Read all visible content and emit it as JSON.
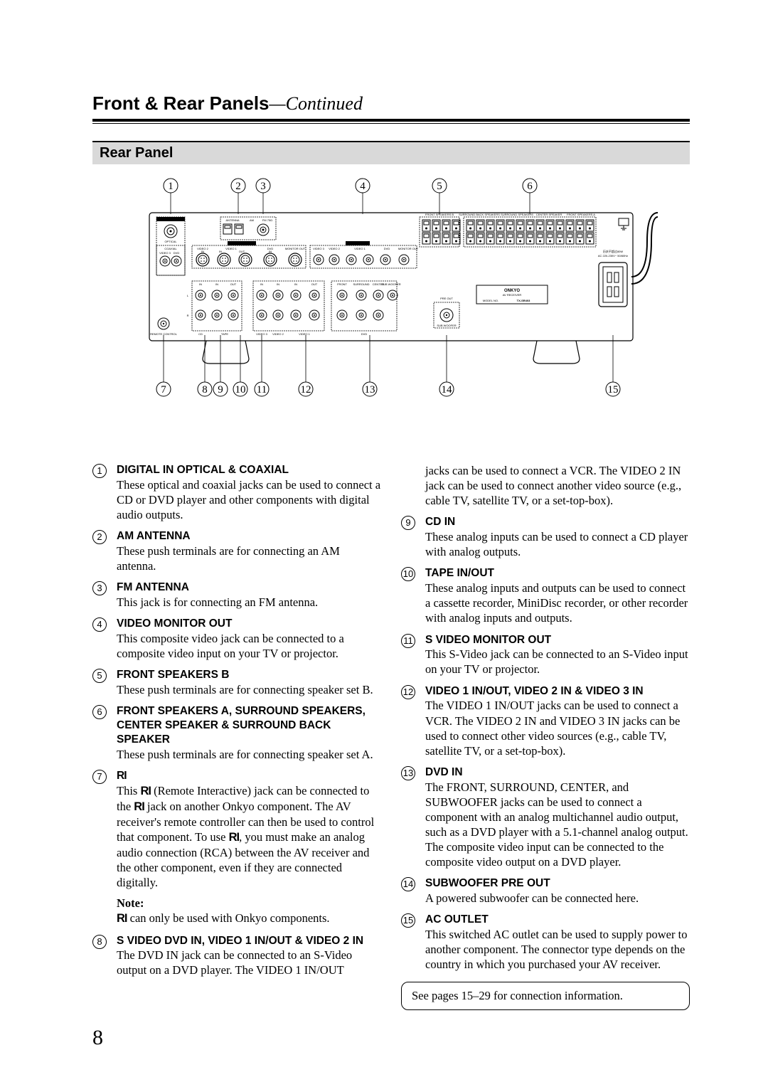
{
  "page": {
    "title_bold": "Front & Rear Panels",
    "title_italic": "—Continued",
    "subheader": "Rear Panel",
    "page_number": "8",
    "see_pages": "See pages 15–29 for connection information."
  },
  "callouts_top": [
    "1",
    "2",
    "3",
    "4",
    "5",
    "6"
  ],
  "callouts_bottom": [
    "7",
    "8",
    "9",
    "10",
    "11",
    "12",
    "13",
    "14",
    "15"
  ],
  "diagram_labels": {
    "digital_in": "DIGITAL IN",
    "optical": "OPTICAL",
    "coaxial": "COAXIAL",
    "antenna": "ANTENNA",
    "am": "AM",
    "fm": "FM 75Ω",
    "svideo": "S VIDEO",
    "video": "VIDEO",
    "monitor_out": "MONITOR OUT",
    "video3": "VIDEO 3",
    "video2": "VIDEO 2",
    "video1": "VIDEO 1",
    "dvd": "DVD",
    "in": "IN",
    "out": "OUT",
    "cd": "CD",
    "tape": "TAPE",
    "l": "L",
    "r": "R",
    "front": "FRONT",
    "surround": "SURROUND",
    "center": "CENTER",
    "sub": "SUB WOOFER",
    "speakers_b": "FRONT SPEAKERS B",
    "speakers_a": "FRONT SPEAKERS A",
    "surround_back": "SURROUND BACK SPEAKERS",
    "center_speaker": "CENTER SPEAKER",
    "surround_speakers": "SURROUND SPEAKERS",
    "pre_out": "PRE OUT",
    "onkyo": "ONKYO",
    "av_receiver": "AV RECEIVER",
    "model_no": "MODEL NO.",
    "model": "TX-SR403",
    "remote": "REMOTE CONTROL",
    "ac_warning": "AC 220-230V~ 50/60Hz"
  },
  "items_left": [
    {
      "num": "1",
      "heading": "DIGITAL IN OPTICAL & COAXIAL",
      "text": "These optical and coaxial jacks can be used to connect a CD or DVD player and other components with digital audio outputs."
    },
    {
      "num": "2",
      "heading": "AM ANTENNA",
      "text": "These push terminals are for connecting an AM antenna."
    },
    {
      "num": "3",
      "heading": "FM ANTENNA",
      "text": "This jack is for connecting an FM antenna."
    },
    {
      "num": "4",
      "heading": "VIDEO MONITOR OUT",
      "text": "This composite video jack can be connected to a composite video input on your TV or projector."
    },
    {
      "num": "5",
      "heading": "FRONT SPEAKERS B",
      "text": "These push terminals are for connecting speaker set B."
    },
    {
      "num": "6",
      "heading": "FRONT SPEAKERS A, SURROUND SPEAKERS, CENTER SPEAKER & SURROUND BACK SPEAKER",
      "text": "These push terminals are for connecting speaker set A."
    }
  ],
  "item7": {
    "num": "7",
    "ri": "RI",
    "text1": "This ",
    "text2": " (Remote Interactive) jack can be connected to the ",
    "text3": " jack on another Onkyo component. The AV receiver's remote controller can then be used to control that component. To use ",
    "text4": ", you must make an analog audio connection (RCA) between the AV receiver and the other component, even if they are connected digitally.",
    "note_label": "Note:",
    "note_text": " can only be used with Onkyo components."
  },
  "item8": {
    "num": "8",
    "heading": "S VIDEO DVD IN, VIDEO 1 IN/OUT & VIDEO 2 IN",
    "text_left": "The DVD IN jack can be connected to an S-Video output on a DVD player. The VIDEO 1 IN/OUT",
    "text_right": "jacks can be used to connect a VCR. The VIDEO 2 IN jack can be used to connect another video source (e.g., cable TV, satellite TV, or a set-top-box)."
  },
  "items_right": [
    {
      "num": "9",
      "heading": "CD IN",
      "text": "These analog inputs can be used to connect a CD player with analog outputs."
    },
    {
      "num": "10",
      "heading": "TAPE IN/OUT",
      "text": "These analog inputs and outputs can be used to connect a cassette recorder, MiniDisc recorder, or other recorder with analog inputs and outputs."
    },
    {
      "num": "11",
      "heading": "S VIDEO MONITOR OUT",
      "text": "This S-Video jack can be connected to an S-Video input on your TV or projector."
    },
    {
      "num": "12",
      "heading": "VIDEO 1 IN/OUT, VIDEO 2 IN & VIDEO 3 IN",
      "text": "The VIDEO 1 IN/OUT jacks can be used to connect a VCR. The VIDEO 2 IN and VIDEO 3 IN jacks can be used to connect other video sources (e.g., cable TV, satellite TV, or a set-top-box)."
    },
    {
      "num": "13",
      "heading": "DVD IN",
      "text": "The FRONT, SURROUND, CENTER, and SUBWOOFER jacks can be used to connect a component with an analog multichannel audio output, such as a DVD player with a 5.1-channel analog output. The composite video input can be connected to the composite video output on a DVD player."
    },
    {
      "num": "14",
      "heading": "SUBWOOFER PRE OUT",
      "text": "A powered subwoofer can be connected here."
    },
    {
      "num": "15",
      "heading": "AC OUTLET",
      "text": "This switched AC outlet can be used to supply power to another component. The connector type depends on the country in which you purchased your AV receiver."
    }
  ]
}
